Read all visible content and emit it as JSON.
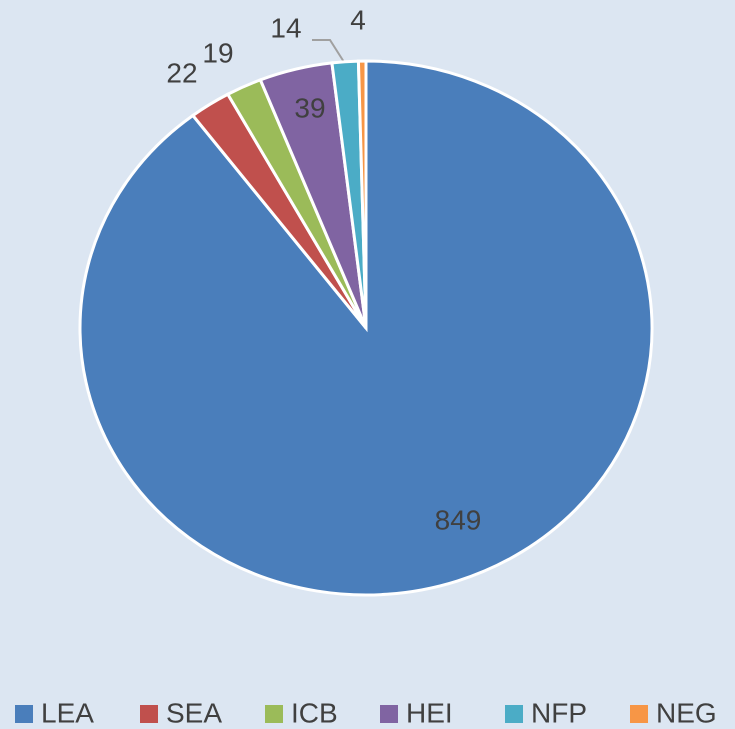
{
  "chart_data": {
    "type": "pie",
    "categories": [
      "LEA",
      "SEA",
      "ICB",
      "HEI",
      "NFP",
      "NEG"
    ],
    "values": [
      849,
      22,
      19,
      39,
      14,
      4
    ],
    "colors": [
      "#4a7ebb",
      "#c0504d",
      "#9bbb59",
      "#8064a2",
      "#4bacc6",
      "#f79646"
    ],
    "legend": "bottom"
  }
}
